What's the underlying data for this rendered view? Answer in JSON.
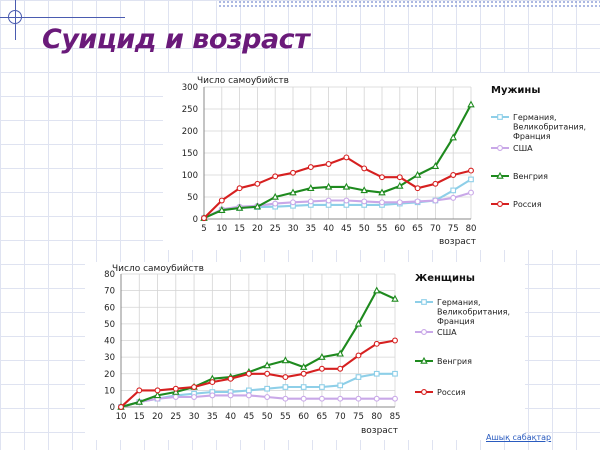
{
  "slide": {
    "title": "Суицид и возраст",
    "footer_link": "Ашық сабақтар"
  },
  "chart_data": [
    {
      "type": "line",
      "legend_title": "Мужины",
      "ylabel": "Число самоубийств",
      "xlabel": "возраст",
      "ylim": [
        0,
        300
      ],
      "yticks": [
        0,
        50,
        100,
        150,
        200,
        250,
        300
      ],
      "x": [
        5,
        10,
        15,
        20,
        25,
        30,
        35,
        40,
        45,
        50,
        55,
        60,
        65,
        70,
        75,
        80
      ],
      "grid": true,
      "legend_position": "right",
      "series": [
        {
          "name": "Германия, Великобритания, Франция",
          "color": "#8ecfe8",
          "marker": "square",
          "values": [
            2,
            20,
            25,
            27,
            28,
            30,
            32,
            32,
            32,
            32,
            32,
            35,
            38,
            42,
            65,
            90
          ]
        },
        {
          "name": "США",
          "color": "#c9a8e8",
          "marker": "circle",
          "values": [
            2,
            22,
            28,
            30,
            35,
            38,
            40,
            42,
            42,
            40,
            38,
            38,
            40,
            42,
            48,
            60
          ]
        },
        {
          "name": "Венгрия",
          "color": "#1e8a1e",
          "marker": "triangle",
          "values": [
            2,
            20,
            25,
            28,
            50,
            60,
            70,
            73,
            73,
            65,
            60,
            75,
            100,
            120,
            185,
            260
          ]
        },
        {
          "name": "Россия",
          "color": "#d62020",
          "marker": "circle",
          "values": [
            2,
            42,
            70,
            80,
            97,
            105,
            118,
            125,
            140,
            115,
            95,
            95,
            70,
            80,
            100,
            110
          ]
        }
      ]
    },
    {
      "type": "line",
      "legend_title": "Женщины",
      "ylabel": "Число самоубийств",
      "xlabel": "возраст",
      "ylim": [
        0,
        80
      ],
      "yticks": [
        0,
        10,
        20,
        30,
        40,
        50,
        60,
        70,
        80
      ],
      "x": [
        10,
        15,
        20,
        25,
        30,
        35,
        40,
        45,
        50,
        55,
        60,
        65,
        70,
        75,
        80,
        85
      ],
      "grid": true,
      "legend_position": "right",
      "series": [
        {
          "name": "Германия, Великобритания, Франция",
          "color": "#8ecfe8",
          "marker": "square",
          "values": [
            0,
            3,
            5,
            7,
            8,
            9,
            9,
            10,
            11,
            12,
            12,
            12,
            13,
            18,
            20,
            20
          ]
        },
        {
          "name": "США",
          "color": "#c9a8e8",
          "marker": "circle",
          "values": [
            0,
            3,
            5,
            6,
            6,
            7,
            7,
            7,
            6,
            5,
            5,
            5,
            5,
            5,
            5,
            5
          ]
        },
        {
          "name": "Венгрия",
          "color": "#1e8a1e",
          "marker": "triangle",
          "values": [
            0,
            3,
            7,
            9,
            12,
            17,
            18,
            21,
            25,
            28,
            24,
            30,
            32,
            50,
            70,
            65
          ]
        },
        {
          "name": "Россия",
          "color": "#d62020",
          "marker": "circle",
          "values": [
            0,
            10,
            10,
            11,
            12,
            15,
            17,
            20,
            20,
            18,
            20,
            23,
            23,
            31,
            38,
            40
          ]
        }
      ]
    }
  ]
}
